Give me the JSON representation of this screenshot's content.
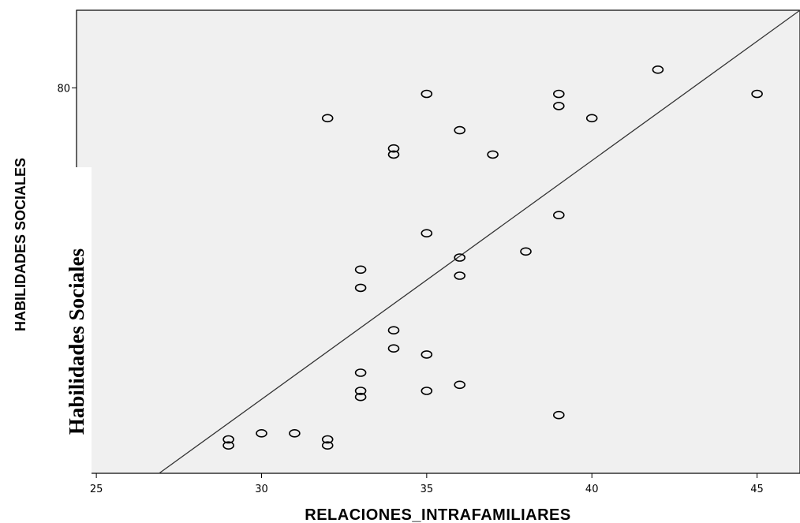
{
  "chart_data": {
    "type": "scatter",
    "xlabel": "RELACIONES_INTRAFAMILIARES",
    "ylabel": "HABILIDADES  SOCIALES",
    "overlay_ylabel": "Habilidades Sociales",
    "xlim": [
      24.4,
      46.3
    ],
    "ylim": [
      48.2,
      86.4
    ],
    "x_ticks": [
      25,
      30,
      35,
      40,
      45
    ],
    "y_ticks": [
      80
    ],
    "grid": false,
    "plot_background": "#f0f0f0",
    "marker": "open-circle",
    "points": [
      {
        "x": 29,
        "y": 50.5
      },
      {
        "x": 29,
        "y": 51.0
      },
      {
        "x": 30,
        "y": 51.5
      },
      {
        "x": 31,
        "y": 51.5
      },
      {
        "x": 32,
        "y": 50.5
      },
      {
        "x": 32,
        "y": 51.0
      },
      {
        "x": 32,
        "y": 77.5
      },
      {
        "x": 33,
        "y": 54.5
      },
      {
        "x": 33,
        "y": 55.0
      },
      {
        "x": 33,
        "y": 56.5
      },
      {
        "x": 33,
        "y": 63.5
      },
      {
        "x": 33,
        "y": 65.0
      },
      {
        "x": 34,
        "y": 58.5
      },
      {
        "x": 34,
        "y": 60.0
      },
      {
        "x": 34,
        "y": 74.5
      },
      {
        "x": 34,
        "y": 75.0
      },
      {
        "x": 35,
        "y": 55.0
      },
      {
        "x": 35,
        "y": 58.0
      },
      {
        "x": 35,
        "y": 68.0
      },
      {
        "x": 35,
        "y": 79.5
      },
      {
        "x": 36,
        "y": 55.5
      },
      {
        "x": 36,
        "y": 64.5
      },
      {
        "x": 36,
        "y": 66.0
      },
      {
        "x": 36,
        "y": 76.5
      },
      {
        "x": 37,
        "y": 74.5
      },
      {
        "x": 38,
        "y": 66.5
      },
      {
        "x": 39,
        "y": 53.0
      },
      {
        "x": 39,
        "y": 69.5
      },
      {
        "x": 39,
        "y": 78.5
      },
      {
        "x": 39,
        "y": 79.5
      },
      {
        "x": 40,
        "y": 77.5
      },
      {
        "x": 42,
        "y": 81.5
      },
      {
        "x": 45,
        "y": 79.5
      }
    ],
    "fit_line": {
      "x": [
        26.9,
        46.3
      ],
      "y": [
        48.2,
        86.4
      ]
    }
  }
}
